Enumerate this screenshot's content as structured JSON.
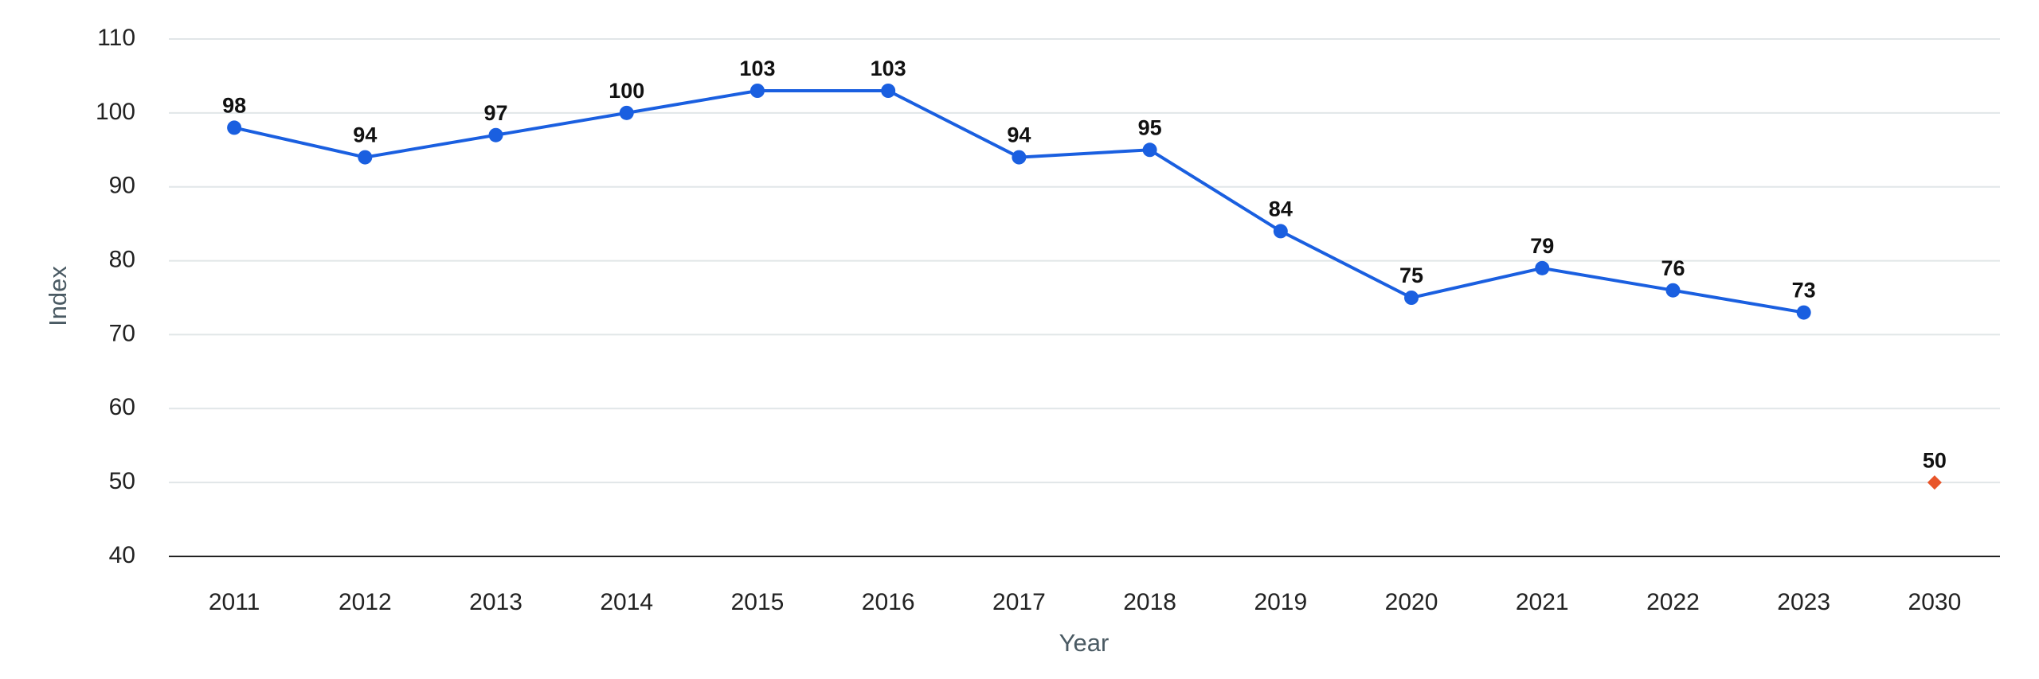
{
  "chart_data": {
    "type": "line",
    "x_label": "Year",
    "y_label": "Index",
    "categories": [
      "2011",
      "2012",
      "2013",
      "2014",
      "2015",
      "2016",
      "2017",
      "2018",
      "2019",
      "2020",
      "2021",
      "2022",
      "2023",
      "2030"
    ],
    "series": [
      {
        "color": "#1a5fe0",
        "marker": "circle",
        "values": [
          98,
          94,
          97,
          100,
          103,
          103,
          94,
          95,
          84,
          75,
          79,
          76,
          73,
          null
        ]
      },
      {
        "color": "#e8552a",
        "marker": "diamond",
        "values": [
          null,
          null,
          null,
          null,
          null,
          null,
          null,
          null,
          null,
          null,
          null,
          null,
          null,
          50
        ]
      }
    ],
    "ylim": [
      40,
      110
    ],
    "yticks": [
      40,
      50,
      60,
      70,
      80,
      90,
      100,
      110
    ],
    "grid": true,
    "data_labels": true
  }
}
